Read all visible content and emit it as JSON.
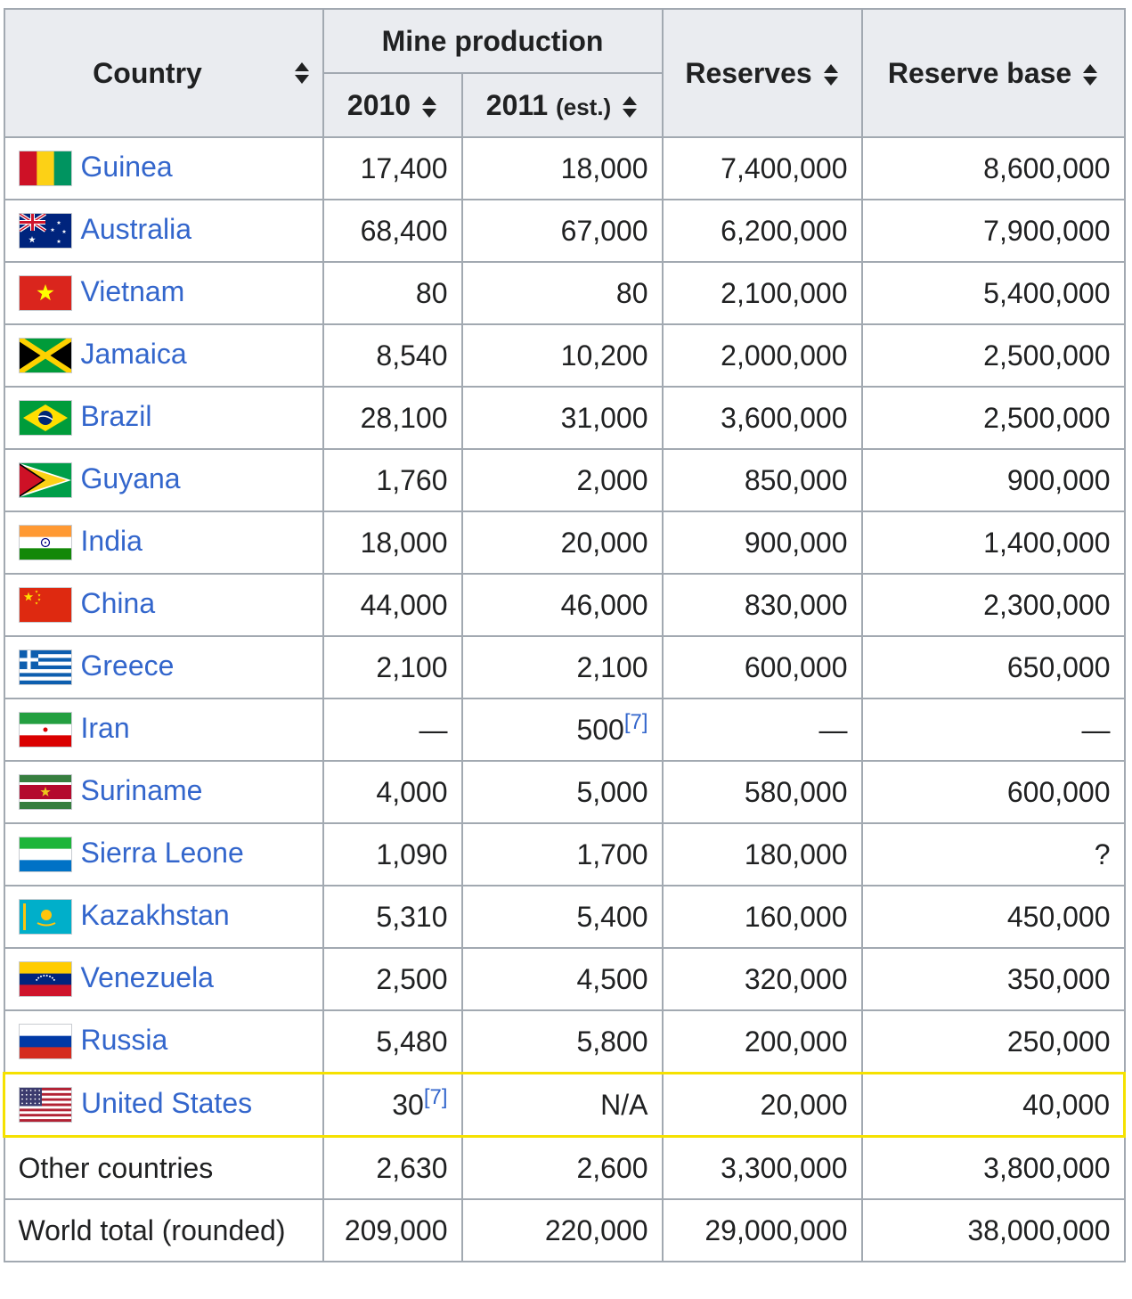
{
  "table": {
    "headers": {
      "country": "Country",
      "mine_production": "Mine production",
      "year_2010": "2010",
      "year_2011": "2011",
      "year_2011_note": "(est.)",
      "reserves": "Reserves",
      "reserve_base": "Reserve base"
    },
    "rows": [
      {
        "country": "Guinea",
        "flag": "flag-guinea",
        "y2010": "17,400",
        "y2011": "18,000",
        "reserves": "7,400,000",
        "reserve_base": "8,600,000"
      },
      {
        "country": "Australia",
        "flag": "flag-australia",
        "y2010": "68,400",
        "y2011": "67,000",
        "reserves": "6,200,000",
        "reserve_base": "7,900,000"
      },
      {
        "country": "Vietnam",
        "flag": "flag-vietnam",
        "y2010": "80",
        "y2011": "80",
        "reserves": "2,100,000",
        "reserve_base": "5,400,000"
      },
      {
        "country": "Jamaica",
        "flag": "flag-jamaica",
        "y2010": "8,540",
        "y2011": "10,200",
        "reserves": "2,000,000",
        "reserve_base": "2,500,000"
      },
      {
        "country": "Brazil",
        "flag": "flag-brazil",
        "y2010": "28,100",
        "y2011": "31,000",
        "reserves": "3,600,000",
        "reserve_base": "2,500,000"
      },
      {
        "country": "Guyana",
        "flag": "flag-guyana",
        "y2010": "1,760",
        "y2011": "2,000",
        "reserves": "850,000",
        "reserve_base": "900,000"
      },
      {
        "country": "India",
        "flag": "flag-india",
        "y2010": "18,000",
        "y2011": "20,000",
        "reserves": "900,000",
        "reserve_base": "1,400,000"
      },
      {
        "country": "China",
        "flag": "flag-china",
        "y2010": "44,000",
        "y2011": "46,000",
        "reserves": "830,000",
        "reserve_base": "2,300,000"
      },
      {
        "country": "Greece",
        "flag": "flag-greece",
        "y2010": "2,100",
        "y2011": "2,100",
        "reserves": "600,000",
        "reserve_base": "650,000"
      },
      {
        "country": "Iran",
        "flag": "flag-iran",
        "y2010": "—",
        "y2011": "500",
        "y2011_ref": "[7]",
        "reserves": "—",
        "reserve_base": "—"
      },
      {
        "country": "Suriname",
        "flag": "flag-suriname",
        "y2010": "4,000",
        "y2011": "5,000",
        "reserves": "580,000",
        "reserve_base": "600,000"
      },
      {
        "country": "Sierra Leone",
        "flag": "flag-sierra-leone",
        "y2010": "1,090",
        "y2011": "1,700",
        "reserves": "180,000",
        "reserve_base": "?"
      },
      {
        "country": "Kazakhstan",
        "flag": "flag-kazakhstan",
        "y2010": "5,310",
        "y2011": "5,400",
        "reserves": "160,000",
        "reserve_base": "450,000"
      },
      {
        "country": "Venezuela",
        "flag": "flag-venezuela",
        "y2010": "2,500",
        "y2011": "4,500",
        "reserves": "320,000",
        "reserve_base": "350,000"
      },
      {
        "country": "Russia",
        "flag": "flag-russia",
        "y2010": "5,480",
        "y2011": "5,800",
        "reserves": "200,000",
        "reserve_base": "250,000"
      },
      {
        "country": "United States",
        "flag": "flag-united-states",
        "y2010": "30",
        "y2010_ref": "[7]",
        "y2011": "N/A",
        "reserves": "20,000",
        "reserve_base": "40,000",
        "highlighted": true
      },
      {
        "country": "Other countries",
        "flag": "",
        "y2010": "2,630",
        "y2011": "2,600",
        "reserves": "3,300,000",
        "reserve_base": "3,800,000"
      },
      {
        "country": "World total (rounded)",
        "flag": "",
        "y2010": "209,000",
        "y2011": "220,000",
        "reserves": "29,000,000",
        "reserve_base": "38,000,000"
      }
    ]
  },
  "colors": {
    "link": "#3366cc",
    "header_bg": "#eaecf0",
    "border": "#a2a9b1",
    "highlight": "#f5e100"
  },
  "icons": {
    "sort": "sort-up-down-icon"
  }
}
